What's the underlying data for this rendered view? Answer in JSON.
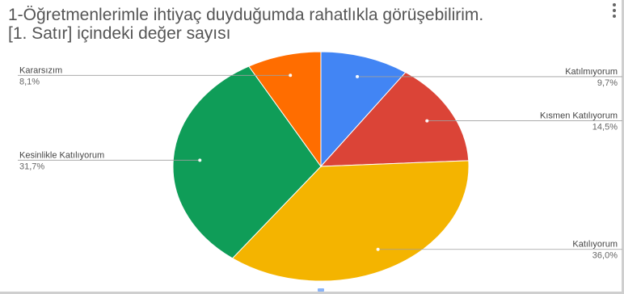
{
  "chart_data": {
    "type": "pie",
    "title_line1": "1-Öğretmenlerimle ihtiyaç duyduğumda rahatlıkla görüşebilirim.",
    "title_line2": "[1. Satır] içindeki değer sayısı",
    "slices": [
      {
        "label": "Katılmıyorum",
        "value": 9.7,
        "value_label": "9,7%",
        "color": "#4285f4",
        "side": "right"
      },
      {
        "label": "Kısmen Katılıyorum",
        "value": 14.5,
        "value_label": "14,5%",
        "color": "#db4437",
        "side": "right"
      },
      {
        "label": "Katılıyorum",
        "value": 36.0,
        "value_label": "36,0%",
        "color": "#f4b400",
        "side": "right"
      },
      {
        "label": "Kesinlikle Katılıyorum",
        "value": 31.7,
        "value_label": "31,7%",
        "color": "#0f9d58",
        "side": "left"
      },
      {
        "label": "Kararsızım",
        "value": 8.1,
        "value_label": "8,1%",
        "color": "#ff6d00",
        "side": "left"
      }
    ],
    "start_angle": "12 o'clock",
    "direction": "clockwise",
    "legend": "leader-line labels"
  }
}
